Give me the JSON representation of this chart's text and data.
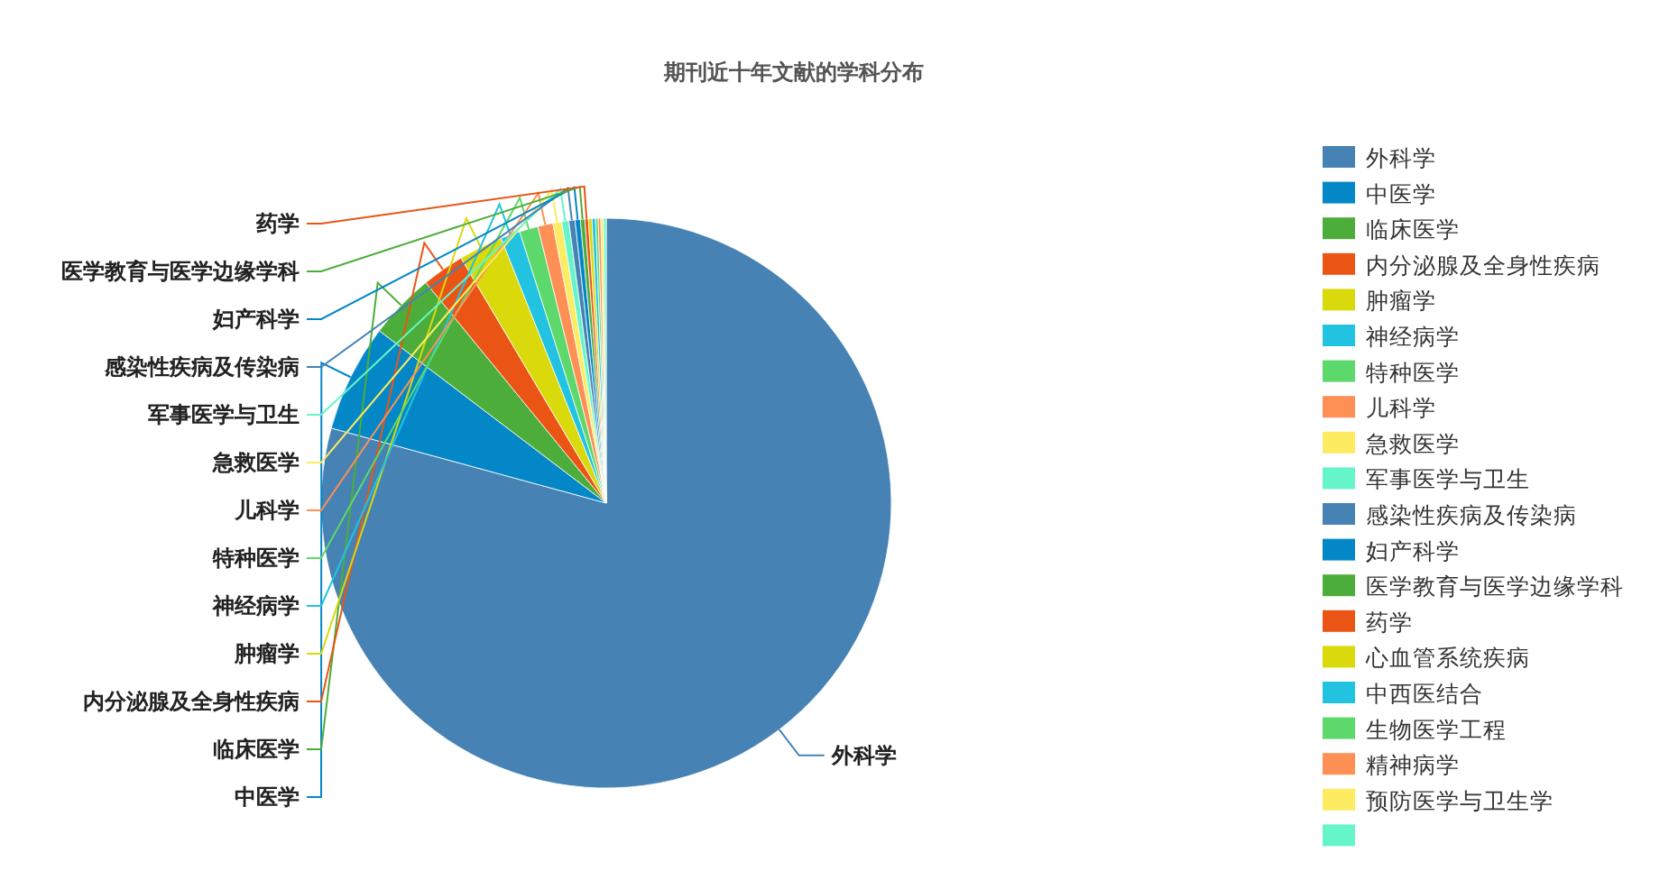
{
  "chart_data": {
    "type": "pie",
    "title": "期刊近十年文献的学科分布",
    "categories": [
      "外科学",
      "中医学",
      "临床医学",
      "内分泌腺及全身性疾病",
      "肿瘤学",
      "神经病学",
      "特种医学",
      "儿科学",
      "急救医学",
      "军事医学与卫生",
      "感染性疾病及传染病",
      "妇产科学",
      "医学教育与医学边缘学科",
      "药学",
      "心血管系统疾病",
      "中西医结合",
      "生物医学工程",
      "精神病学",
      "预防医学与卫生学",
      null
    ],
    "values": [
      79.24,
      6.1,
      3.75,
      2.4,
      2.5,
      1.1,
      1.05,
      0.86,
      0.5,
      0.4,
      0.35,
      0.3,
      0.25,
      0.2,
      0.2,
      0.2,
      0.15,
      0.15,
      0.15,
      0.15
    ],
    "colors": [
      "#4682b4",
      "#0487c6",
      "#4cad3a",
      "#ea5516",
      "#d9d90b",
      "#22c3e0",
      "#5dd86a",
      "#fe8f55",
      "#fdeb62",
      "#66f5c8",
      "#4682b4",
      "#0487c6",
      "#4cad3a",
      "#ea5516",
      "#d9d90b",
      "#22c3e0",
      "#5dd86a",
      "#fe8f55",
      "#fdeb62",
      "#66f5c8"
    ],
    "legend": "right"
  }
}
